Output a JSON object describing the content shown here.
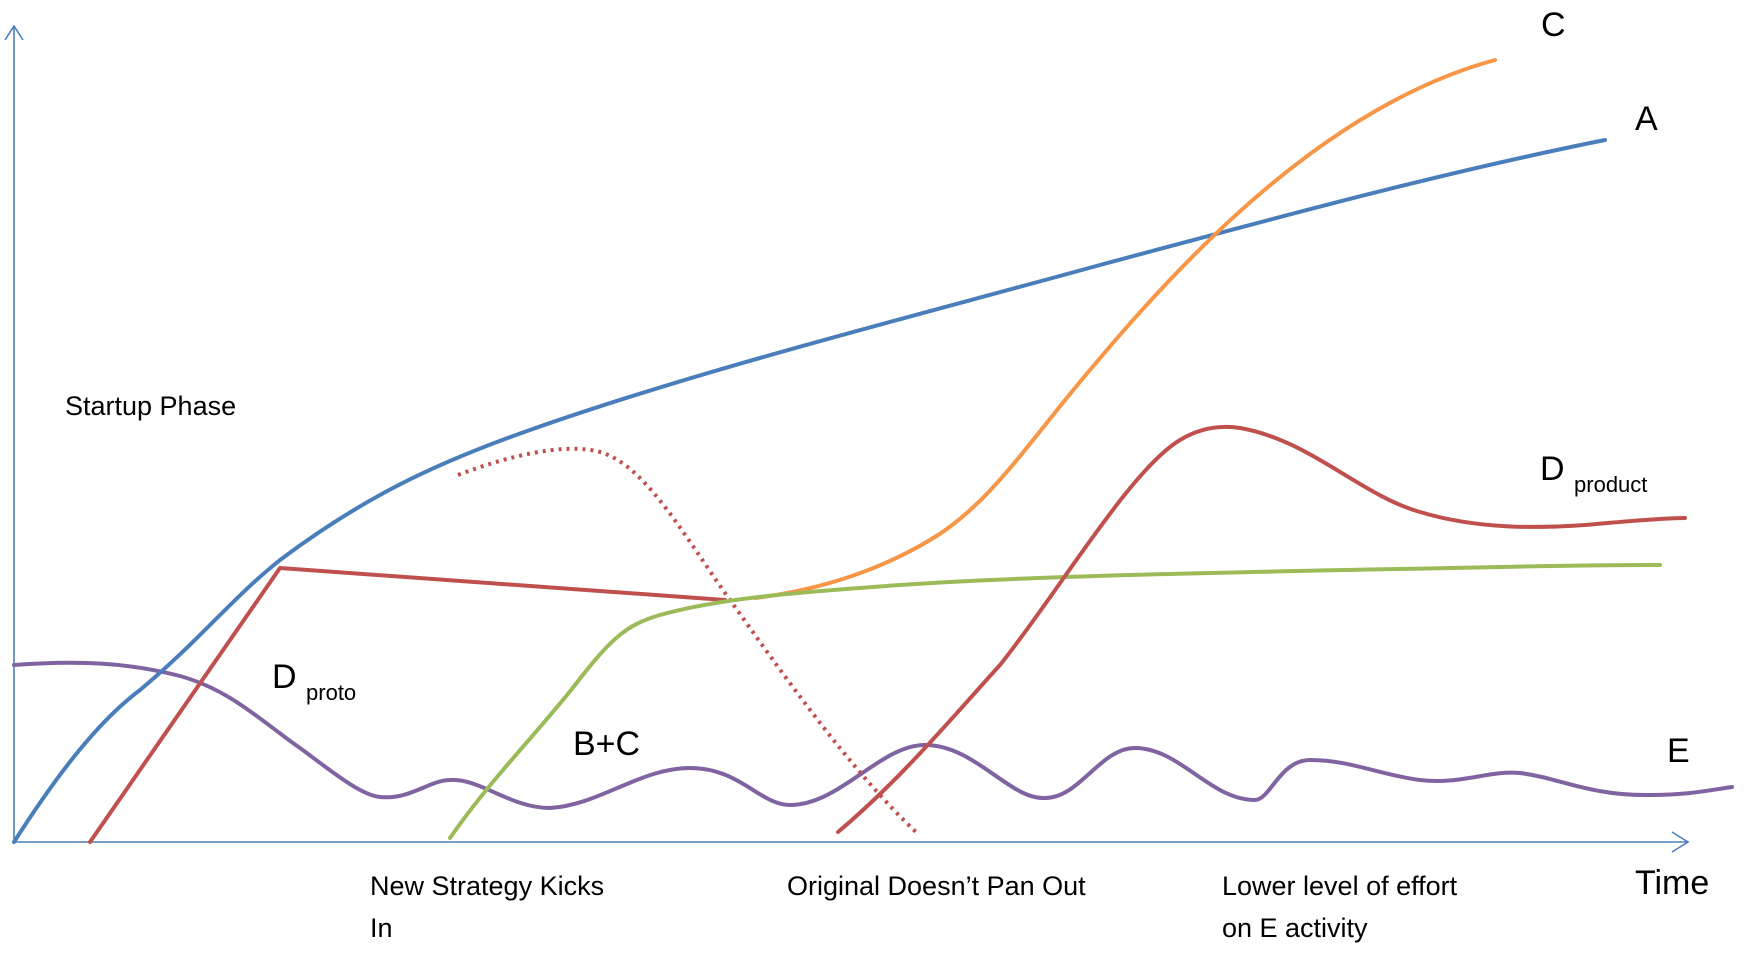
{
  "axes": {
    "x_label": "Time",
    "axis_color": "#4a7ebb"
  },
  "curves": {
    "a": {
      "label": "A",
      "color": "#4a7ebb"
    },
    "c": {
      "label": "C",
      "color": "#f79646"
    },
    "d_product": {
      "label_main": "D",
      "label_sub": "product",
      "color": "#c0504d"
    },
    "d_proto": {
      "label_main": "D",
      "label_sub": "proto",
      "color": "#c0504d"
    },
    "b_plus_c": {
      "label": "B+C",
      "color": "#9bbb59"
    },
    "e": {
      "label": "E",
      "color": "#8064a2"
    },
    "original": {
      "color": "#c0504d"
    }
  },
  "annotations": {
    "startup_phase": "Startup Phase",
    "new_strategy_line1": "New Strategy Kicks",
    "new_strategy_line2": "In",
    "original_fails": "Original Doesn’t Pan Out",
    "lower_effort_line1": "Lower level of effort",
    "lower_effort_line2": "on E activity"
  }
}
